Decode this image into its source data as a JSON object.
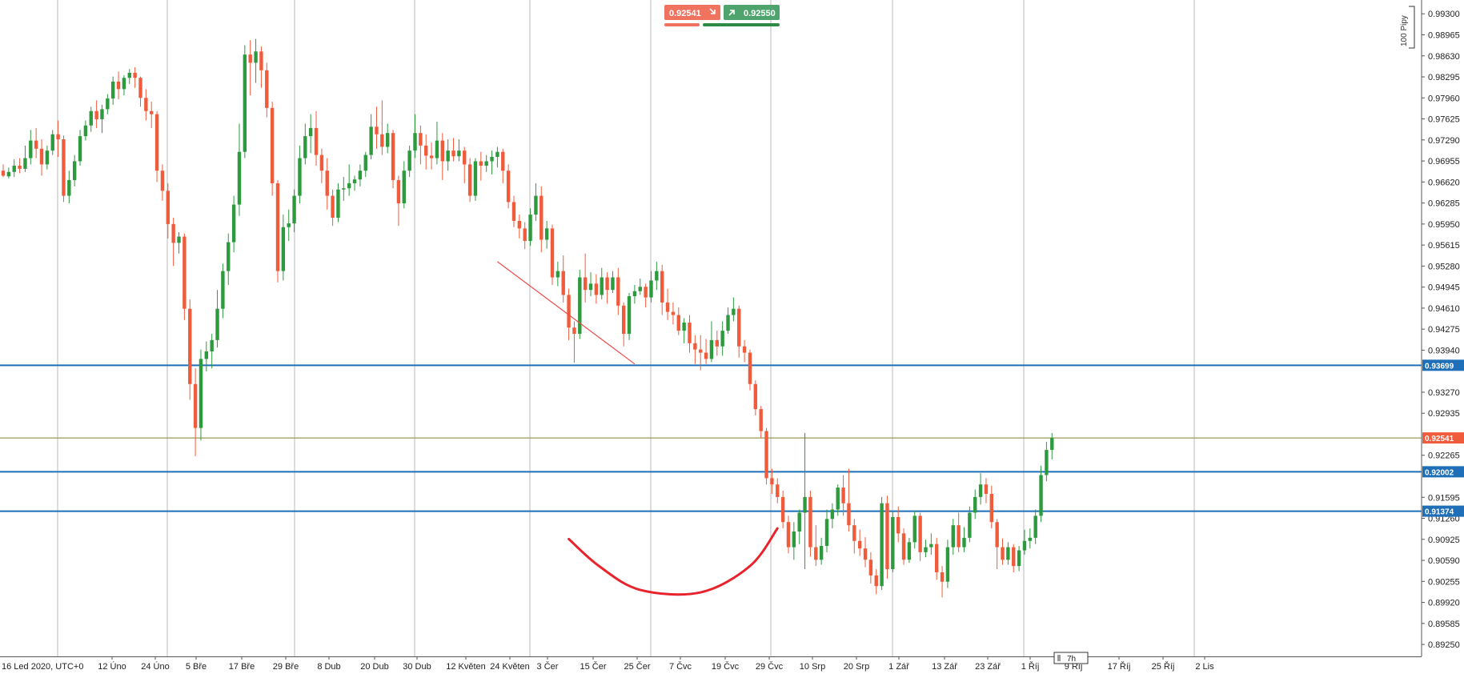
{
  "quote": {
    "bid": "0.92541",
    "ask": "0.92550",
    "bid_icon": "arrow-down-right-icon",
    "ask_icon": "arrow-up-right-icon",
    "bid_color": "#f0735f",
    "ask_color": "#4fa36c"
  },
  "scale_label": "100 Pipy",
  "timeframe_label": "7h",
  "colors": {
    "up": "#2e9a3e",
    "down": "#f05b3c",
    "level": "#1e6fb8",
    "current": "#9a9a55",
    "current_label_bg": "#f05b3c",
    "trendline": "#ef4a4a",
    "pattern": "#e8232b",
    "grid": "#8c8c8c"
  },
  "chart_data": {
    "type": "candlestick",
    "x_start_label": "16 Led 2020, UTC+0",
    "x_ticks": [
      "12 Úno",
      "24 Úno",
      "5 Bře",
      "17 Bře",
      "29 Bře",
      "8 Dub",
      "20 Dub",
      "30 Dub",
      "12 Květen",
      "24 Květen",
      "3 Čer",
      "15 Čer",
      "25 Čer",
      "7 Čvc",
      "19 Čvc",
      "29 Čvc",
      "10 Srp",
      "20 Srp",
      "1 Zář",
      "13 Zář",
      "23 Zář",
      "1 Říj",
      "9 Říj",
      "17 Říj",
      "25 Říj",
      "2 Lis"
    ],
    "y_ticks": [
      0.993,
      0.98965,
      0.9863,
      0.98295,
      0.9796,
      0.97625,
      0.9729,
      0.96955,
      0.9662,
      0.96285,
      0.9595,
      0.95615,
      0.9528,
      0.94945,
      0.9461,
      0.94275,
      0.9394,
      0.9327,
      0.92935,
      0.92265,
      0.91595,
      0.9126,
      0.90925,
      0.9059,
      0.90255,
      0.8992,
      0.89585,
      0.8925
    ],
    "ylim": [
      0.8906,
      0.9952
    ],
    "horizontal_levels": [
      {
        "value": 0.93699,
        "label": "0.93699",
        "kind": "support"
      },
      {
        "value": 0.92541,
        "label": "0.92541",
        "kind": "current"
      },
      {
        "value": 0.92002,
        "label": "0.92002",
        "kind": "support"
      },
      {
        "value": 0.91374,
        "label": "0.91374",
        "kind": "support"
      }
    ],
    "trendline": [
      {
        "x": 90.0,
        "y": 0.9535
      },
      {
        "x": 115.0,
        "y": 0.9372
      }
    ],
    "rounding_bottom": [
      {
        "x": 103.0,
        "y": 0.9093
      },
      {
        "x": 108.5,
        "y": 0.905
      },
      {
        "x": 116.0,
        "y": 0.9012
      },
      {
        "x": 127.0,
        "y": 0.9008
      },
      {
        "x": 136.0,
        "y": 0.905
      },
      {
        "x": 141.0,
        "y": 0.911
      }
    ],
    "candles": [
      [
        0.968,
        0.969,
        0.9672,
        0.967
      ],
      [
        0.9671,
        0.9685,
        0.9678,
        0.9668
      ],
      [
        0.9678,
        0.9698,
        0.9688,
        0.967
      ],
      [
        0.9688,
        0.97,
        0.9683,
        0.9676
      ],
      [
        0.9683,
        0.972,
        0.97,
        0.9678
      ],
      [
        0.97,
        0.9745,
        0.9728,
        0.969
      ],
      [
        0.9728,
        0.9748,
        0.9715,
        0.97
      ],
      [
        0.9715,
        0.973,
        0.969,
        0.9672
      ],
      [
        0.969,
        0.972,
        0.9712,
        0.9682
      ],
      [
        0.9712,
        0.9745,
        0.9738,
        0.9705
      ],
      [
        0.9738,
        0.976,
        0.973,
        0.9702
      ],
      [
        0.973,
        0.9736,
        0.964,
        0.963
      ],
      [
        0.964,
        0.968,
        0.9665,
        0.9628
      ],
      [
        0.9665,
        0.9705,
        0.9695,
        0.9655
      ],
      [
        0.9695,
        0.9745,
        0.9735,
        0.9688
      ],
      [
        0.9735,
        0.976,
        0.9752,
        0.9728
      ],
      [
        0.9752,
        0.9782,
        0.9775,
        0.9742
      ],
      [
        0.9775,
        0.9792,
        0.9762,
        0.9748
      ],
      [
        0.9762,
        0.9785,
        0.9778,
        0.974
      ],
      [
        0.9778,
        0.9802,
        0.9795,
        0.977
      ],
      [
        0.9795,
        0.983,
        0.9822,
        0.9785
      ],
      [
        0.9822,
        0.9838,
        0.981,
        0.9794
      ],
      [
        0.981,
        0.9832,
        0.9828,
        0.98
      ],
      [
        0.9828,
        0.9842,
        0.9836,
        0.9818
      ],
      [
        0.9836,
        0.9845,
        0.9828,
        0.9812
      ],
      [
        0.9828,
        0.983,
        0.9796,
        0.9782
      ],
      [
        0.9796,
        0.981,
        0.9775,
        0.976
      ],
      [
        0.9775,
        0.979,
        0.977,
        0.9748
      ],
      [
        0.977,
        0.9775,
        0.968,
        0.9662
      ],
      [
        0.968,
        0.969,
        0.9648,
        0.9632
      ],
      [
        0.9648,
        0.966,
        0.9595,
        0.9572
      ],
      [
        0.9595,
        0.9605,
        0.9565,
        0.9528
      ],
      [
        0.9565,
        0.9582,
        0.9575,
        0.9548
      ],
      [
        0.9575,
        0.958,
        0.946,
        0.9442
      ],
      [
        0.946,
        0.9475,
        0.934,
        0.9315
      ],
      [
        0.934,
        0.9365,
        0.927,
        0.9225
      ],
      [
        0.927,
        0.9395,
        0.938,
        0.925
      ],
      [
        0.938,
        0.9408,
        0.9392,
        0.936
      ],
      [
        0.9392,
        0.942,
        0.941,
        0.9365
      ],
      [
        0.941,
        0.949,
        0.946,
        0.9398
      ],
      [
        0.946,
        0.9532,
        0.952,
        0.9445
      ],
      [
        0.952,
        0.958,
        0.9566,
        0.9498
      ],
      [
        0.9566,
        0.964,
        0.9626,
        0.955
      ],
      [
        0.9626,
        0.9755,
        0.971,
        0.9608
      ],
      [
        0.971,
        0.988,
        0.9865,
        0.97
      ],
      [
        0.9865,
        0.9888,
        0.9852,
        0.98
      ],
      [
        0.9852,
        0.989,
        0.987,
        0.982
      ],
      [
        0.987,
        0.9878,
        0.984,
        0.9812
      ],
      [
        0.984,
        0.9852,
        0.978,
        0.9765
      ],
      [
        0.978,
        0.979,
        0.966,
        0.964
      ],
      [
        0.966,
        0.9665,
        0.952,
        0.9502
      ],
      [
        0.952,
        0.961,
        0.959,
        0.9505
      ],
      [
        0.959,
        0.9618,
        0.9596,
        0.9568
      ],
      [
        0.9596,
        0.965,
        0.964,
        0.9582
      ],
      [
        0.964,
        0.972,
        0.97,
        0.9628
      ],
      [
        0.97,
        0.9755,
        0.9735,
        0.969
      ],
      [
        0.9735,
        0.977,
        0.9748,
        0.9708
      ],
      [
        0.9748,
        0.9775,
        0.9705,
        0.9688
      ],
      [
        0.9705,
        0.9715,
        0.968,
        0.966
      ],
      [
        0.968,
        0.97,
        0.964,
        0.9618
      ],
      [
        0.964,
        0.965,
        0.9605,
        0.9592
      ],
      [
        0.9605,
        0.966,
        0.965,
        0.9598
      ],
      [
        0.965,
        0.967,
        0.9652,
        0.9632
      ],
      [
        0.9652,
        0.969,
        0.966,
        0.964
      ],
      [
        0.966,
        0.9672,
        0.9666,
        0.9648
      ],
      [
        0.9666,
        0.969,
        0.968,
        0.9655
      ],
      [
        0.968,
        0.971,
        0.9705,
        0.967
      ],
      [
        0.9705,
        0.977,
        0.975,
        0.9698
      ],
      [
        0.975,
        0.9782,
        0.9738,
        0.9715
      ],
      [
        0.9738,
        0.9792,
        0.9718,
        0.9705
      ],
      [
        0.9718,
        0.9755,
        0.974,
        0.9708
      ],
      [
        0.974,
        0.9745,
        0.9665,
        0.9652
      ],
      [
        0.9665,
        0.9672,
        0.9628,
        0.9592
      ],
      [
        0.9628,
        0.9695,
        0.968,
        0.962
      ],
      [
        0.968,
        0.972,
        0.9712,
        0.967
      ],
      [
        0.9712,
        0.977,
        0.974,
        0.97
      ],
      [
        0.974,
        0.9752,
        0.972,
        0.969
      ],
      [
        0.972,
        0.9738,
        0.9704,
        0.9682
      ],
      [
        0.9704,
        0.9725,
        0.97,
        0.9682
      ],
      [
        0.97,
        0.9758,
        0.9728,
        0.969
      ],
      [
        0.9728,
        0.974,
        0.9695,
        0.9665
      ],
      [
        0.9695,
        0.973,
        0.9712,
        0.968
      ],
      [
        0.9712,
        0.9732,
        0.9703,
        0.9695
      ],
      [
        0.9703,
        0.973,
        0.9712,
        0.9695
      ],
      [
        0.9712,
        0.9718,
        0.969,
        0.966
      ],
      [
        0.969,
        0.97,
        0.964,
        0.963
      ],
      [
        0.964,
        0.97,
        0.9695,
        0.9632
      ],
      [
        0.9695,
        0.971,
        0.9688,
        0.9664
      ],
      [
        0.9688,
        0.9705,
        0.9695,
        0.9678
      ],
      [
        0.9695,
        0.9712,
        0.9702,
        0.9674
      ],
      [
        0.9702,
        0.9718,
        0.971,
        0.9685
      ],
      [
        0.971,
        0.9715,
        0.968,
        0.966
      ],
      [
        0.968,
        0.969,
        0.963,
        0.962
      ],
      [
        0.963,
        0.964,
        0.96,
        0.959
      ],
      [
        0.96,
        0.961,
        0.9588,
        0.9572
      ],
      [
        0.9588,
        0.9598,
        0.9568,
        0.9555
      ],
      [
        0.9568,
        0.962,
        0.961,
        0.956
      ],
      [
        0.961,
        0.966,
        0.964,
        0.96
      ],
      [
        0.964,
        0.9655,
        0.957,
        0.955
      ],
      [
        0.957,
        0.96,
        0.9588,
        0.9556
      ],
      [
        0.9588,
        0.9594,
        0.951,
        0.9498
      ],
      [
        0.951,
        0.9535,
        0.952,
        0.9496
      ],
      [
        0.952,
        0.9545,
        0.9482,
        0.947
      ],
      [
        0.9482,
        0.9492,
        0.943,
        0.941
      ],
      [
        0.943,
        0.944,
        0.942,
        0.9374
      ],
      [
        0.942,
        0.9522,
        0.951,
        0.9412
      ],
      [
        0.951,
        0.9548,
        0.949,
        0.947
      ],
      [
        0.949,
        0.9518,
        0.95,
        0.948
      ],
      [
        0.95,
        0.9515,
        0.9482,
        0.9468
      ],
      [
        0.9482,
        0.9525,
        0.951,
        0.9475
      ],
      [
        0.951,
        0.9518,
        0.949,
        0.9468
      ],
      [
        0.949,
        0.952,
        0.951,
        0.9485
      ],
      [
        0.951,
        0.9525,
        0.9465,
        0.945
      ],
      [
        0.9465,
        0.947,
        0.942,
        0.94
      ],
      [
        0.942,
        0.9485,
        0.948,
        0.941
      ],
      [
        0.948,
        0.9498,
        0.9488,
        0.9468
      ],
      [
        0.9488,
        0.9508,
        0.9495,
        0.9482
      ],
      [
        0.9495,
        0.95,
        0.9478,
        0.9462
      ],
      [
        0.9478,
        0.952,
        0.9505,
        0.947
      ],
      [
        0.9505,
        0.9535,
        0.952,
        0.949
      ],
      [
        0.952,
        0.953,
        0.947,
        0.945
      ],
      [
        0.947,
        0.9492,
        0.9455,
        0.9442
      ],
      [
        0.9455,
        0.947,
        0.945,
        0.9435
      ],
      [
        0.945,
        0.9462,
        0.9425,
        0.9418
      ],
      [
        0.9425,
        0.9445,
        0.9438,
        0.9405
      ],
      [
        0.9438,
        0.945,
        0.9405,
        0.939
      ],
      [
        0.9405,
        0.9418,
        0.9395,
        0.9372
      ],
      [
        0.9395,
        0.9418,
        0.939,
        0.9362
      ],
      [
        0.939,
        0.9412,
        0.938,
        0.9372
      ],
      [
        0.938,
        0.944,
        0.941,
        0.9375
      ],
      [
        0.941,
        0.9425,
        0.94,
        0.9385
      ],
      [
        0.94,
        0.944,
        0.9425,
        0.9385
      ],
      [
        0.9425,
        0.9462,
        0.945,
        0.942
      ],
      [
        0.945,
        0.9478,
        0.946,
        0.944
      ],
      [
        0.946,
        0.9465,
        0.94,
        0.9382
      ],
      [
        0.94,
        0.941,
        0.939,
        0.9375
      ],
      [
        0.939,
        0.9395,
        0.934,
        0.933
      ],
      [
        0.934,
        0.9346,
        0.93,
        0.929
      ],
      [
        0.93,
        0.9305,
        0.9265,
        0.9254
      ],
      [
        0.9265,
        0.927,
        0.919,
        0.918
      ],
      [
        0.919,
        0.9205,
        0.918,
        0.9165
      ],
      [
        0.918,
        0.919,
        0.916,
        0.915
      ],
      [
        0.916,
        0.917,
        0.912,
        0.911
      ],
      [
        0.912,
        0.913,
        0.908,
        0.907
      ],
      [
        0.908,
        0.912,
        0.9105,
        0.906
      ],
      [
        0.9105,
        0.914,
        0.9135,
        0.9085
      ],
      [
        0.9135,
        0.9262,
        0.916,
        0.9045
      ],
      [
        0.916,
        0.917,
        0.908,
        0.9065
      ],
      [
        0.908,
        0.9115,
        0.906,
        0.905
      ],
      [
        0.906,
        0.9095,
        0.9082,
        0.9052
      ],
      [
        0.9082,
        0.914,
        0.9125,
        0.9072
      ],
      [
        0.9125,
        0.915,
        0.914,
        0.911
      ],
      [
        0.914,
        0.918,
        0.9175,
        0.913
      ],
      [
        0.9175,
        0.9195,
        0.915,
        0.913
      ],
      [
        0.915,
        0.9205,
        0.9115,
        0.9105
      ],
      [
        0.9115,
        0.9125,
        0.909,
        0.907
      ],
      [
        0.909,
        0.9108,
        0.9078,
        0.9066
      ],
      [
        0.9078,
        0.9096,
        0.906,
        0.9048
      ],
      [
        0.906,
        0.9072,
        0.9035,
        0.9022
      ],
      [
        0.9035,
        0.9045,
        0.9018,
        0.9005
      ],
      [
        0.9018,
        0.916,
        0.915,
        0.9012
      ],
      [
        0.915,
        0.9162,
        0.9045,
        0.903
      ],
      [
        0.9045,
        0.9138,
        0.9128,
        0.904
      ],
      [
        0.9128,
        0.9145,
        0.9102,
        0.9088
      ],
      [
        0.9102,
        0.911,
        0.906,
        0.9052
      ],
      [
        0.906,
        0.9095,
        0.9088,
        0.9055
      ],
      [
        0.9088,
        0.9138,
        0.913,
        0.9078
      ],
      [
        0.913,
        0.9135,
        0.9072,
        0.9058
      ],
      [
        0.9072,
        0.9092,
        0.908,
        0.9064
      ],
      [
        0.908,
        0.9102,
        0.9085,
        0.9068
      ],
      [
        0.9085,
        0.9095,
        0.904,
        0.9028
      ],
      [
        0.904,
        0.905,
        0.9025,
        0.9
      ],
      [
        0.9025,
        0.9092,
        0.908,
        0.9015
      ],
      [
        0.908,
        0.9125,
        0.9115,
        0.9068
      ],
      [
        0.9115,
        0.9135,
        0.908,
        0.9072
      ],
      [
        0.908,
        0.9112,
        0.9095,
        0.9072
      ],
      [
        0.9095,
        0.9145,
        0.9135,
        0.9088
      ],
      [
        0.9135,
        0.9172,
        0.916,
        0.9125
      ],
      [
        0.916,
        0.9198,
        0.918,
        0.9148
      ],
      [
        0.918,
        0.919,
        0.9165,
        0.915
      ],
      [
        0.9165,
        0.9178,
        0.912,
        0.911
      ],
      [
        0.912,
        0.9125,
        0.908,
        0.9045
      ],
      [
        0.908,
        0.9094,
        0.906,
        0.9052
      ],
      [
        0.906,
        0.9088,
        0.908,
        0.9052
      ],
      [
        0.908,
        0.9085,
        0.905,
        0.904
      ],
      [
        0.905,
        0.9082,
        0.9075,
        0.9042
      ],
      [
        0.9075,
        0.9108,
        0.909,
        0.9068
      ],
      [
        0.909,
        0.911,
        0.9095,
        0.9078
      ],
      [
        0.9095,
        0.914,
        0.913,
        0.9085
      ],
      [
        0.913,
        0.921,
        0.9195,
        0.912
      ],
      [
        0.9195,
        0.9248,
        0.9235,
        0.9185
      ],
      [
        0.9235,
        0.9262,
        0.9254,
        0.922
      ]
    ]
  }
}
